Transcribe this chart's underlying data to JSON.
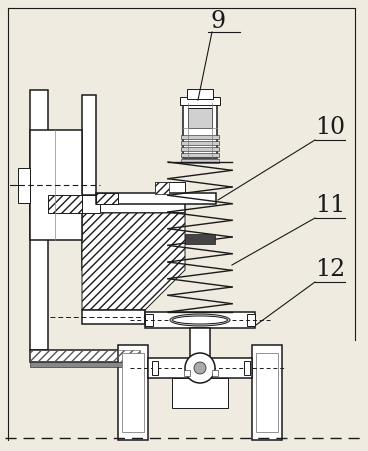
{
  "bg_color": "#f0ebe0",
  "line_color": "#1a1a1a",
  "figsize": [
    3.68,
    4.51
  ],
  "dpi": 100,
  "labels": [
    "9",
    "10",
    "11",
    "12"
  ],
  "label_fontsize": 17
}
